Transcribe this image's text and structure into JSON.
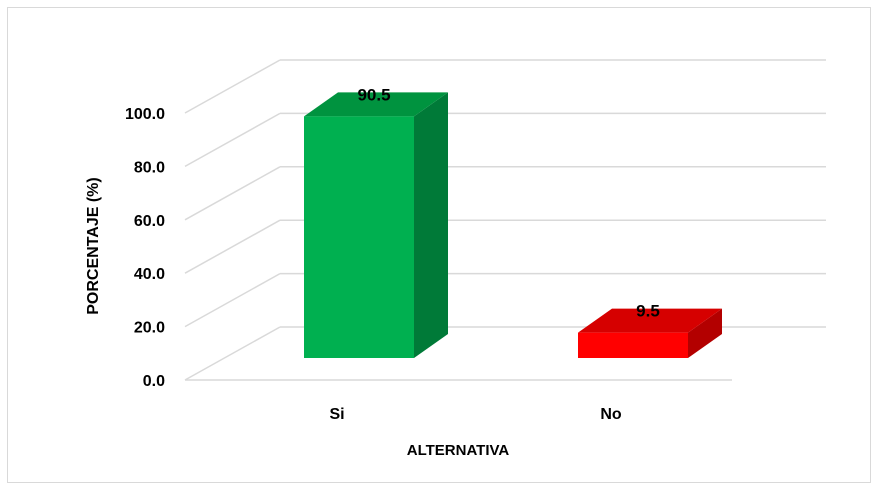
{
  "chart_data": {
    "type": "bar",
    "categories": [
      "Si",
      "No"
    ],
    "values": [
      90.5,
      9.5
    ],
    "data_labels": [
      "90.5",
      "9.5"
    ],
    "xlabel": "ALTERNATIVA",
    "ylabel": "PORCENTAJE (%)",
    "yticks": [
      "0.0",
      "20.0",
      "40.0",
      "60.0",
      "80.0",
      "100.0"
    ],
    "ylim": [
      0,
      100
    ],
    "grid": true,
    "style": "3d-columns",
    "colors": {
      "Si": {
        "front": "#00b050",
        "side": "#007a38",
        "top": "#00933f"
      },
      "No": {
        "front": "#ff0000",
        "side": "#b30000",
        "top": "#d60000"
      },
      "grid": "#d9d9d9"
    }
  }
}
